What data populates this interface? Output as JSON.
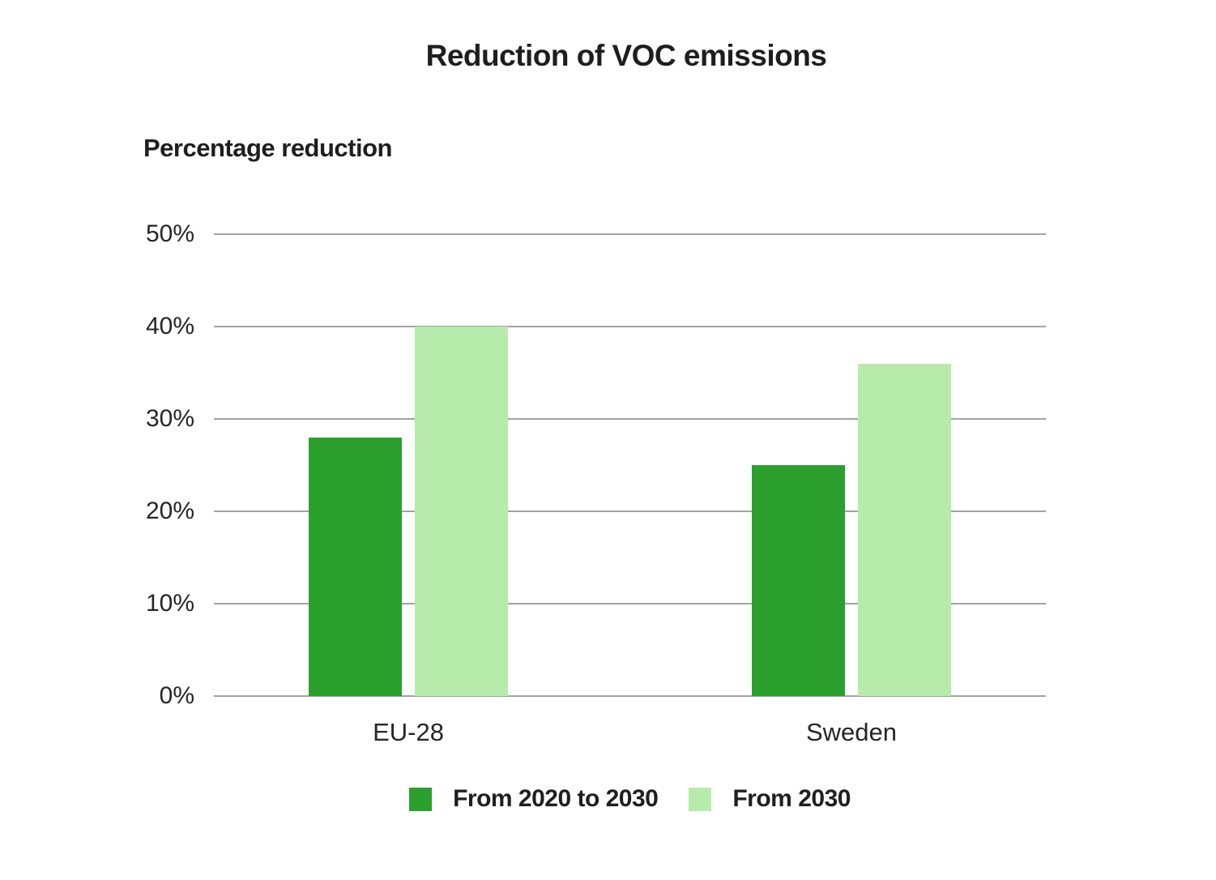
{
  "title": "Reduction of VOC emissions",
  "chart_data": {
    "type": "bar",
    "title": "Reduction of VOC emissions",
    "ylabel": "Percentage reduction",
    "xlabel": "",
    "categories": [
      "EU-28",
      "Sweden"
    ],
    "series": [
      {
        "name": "From 2020 to 2030",
        "values": [
          28,
          25
        ],
        "color": "#2ca02c"
      },
      {
        "name": "From 2030",
        "values": [
          40,
          36
        ],
        "color": "#b7ebab"
      }
    ],
    "ylim": [
      0,
      50
    ],
    "ytick_step": 10,
    "ytick_labels": [
      "0%",
      "10%",
      "20%",
      "30%",
      "40%",
      "50%"
    ],
    "grid": true,
    "gridline_color": "#a3a3a3",
    "text_color": "#262626",
    "legend_position": "bottom"
  }
}
